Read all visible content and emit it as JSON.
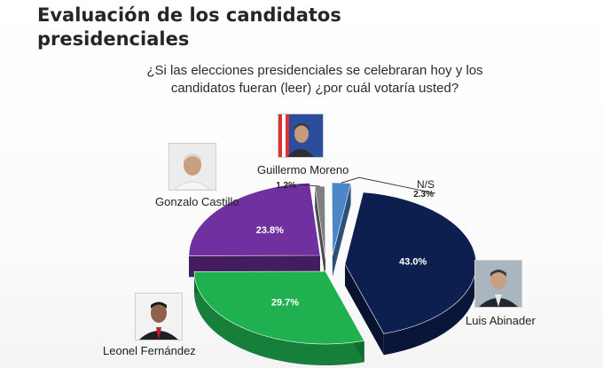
{
  "title": "Evaluación de los candidatos presidenciales",
  "question": "¿Si las elecciones presidenciales se celebraran hoy y los candidatos fueran (leer) ¿por cuál votaría usted?",
  "chart_data": {
    "type": "pie",
    "title": "Evaluación de los candidatos presidenciales",
    "subtitle": "¿Si las elecciones presidenciales se celebraran hoy y los candidatos fueran (leer) ¿por cuál votaría usted?",
    "slices": [
      {
        "label": "Luis Abinader",
        "value": 43.0,
        "value_label": "43.0%",
        "color": "#0d1f4f"
      },
      {
        "label": "Leonel Fernández",
        "value": 29.7,
        "value_label": "29.7%",
        "color": "#1fb050"
      },
      {
        "label": "Gonzalo Castillo",
        "value": 23.8,
        "value_label": "23.8%",
        "color": "#7030a0"
      },
      {
        "label": "Guillermo Moreno",
        "value": 1.2,
        "value_label": "1.2%",
        "color": "#808080"
      },
      {
        "label": "N/S",
        "value": 2.3,
        "value_label": "2.3%",
        "color": "#4a86c8"
      }
    ],
    "style": "3d-exploded-pie"
  }
}
